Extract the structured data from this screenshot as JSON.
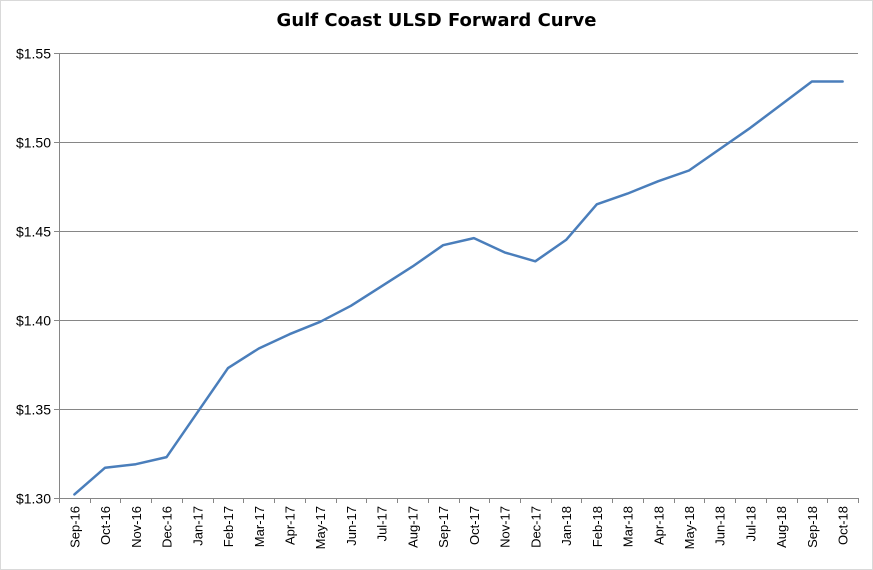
{
  "chart_data": {
    "type": "line",
    "title": "Gulf Coast ULSD Forward Curve",
    "xlabel": "",
    "ylabel": "",
    "ylim": [
      1.3,
      1.55
    ],
    "ytick_values": [
      1.3,
      1.35,
      1.4,
      1.45,
      1.5,
      1.55
    ],
    "ytick_labels": [
      "$1.30",
      "$1.35",
      "$1.40",
      "$1.45",
      "$1.50",
      "$1.55"
    ],
    "grid": true,
    "legend": "none",
    "categories": [
      "Sep-16",
      "Oct-16",
      "Nov-16",
      "Dec-16",
      "Jan-17",
      "Feb-17",
      "Mar-17",
      "Apr-17",
      "May-17",
      "Jun-17",
      "Jul-17",
      "Aug-17",
      "Sep-17",
      "Oct-17",
      "Nov-17",
      "Dec-17",
      "Jan-18",
      "Feb-18",
      "Mar-18",
      "Apr-18",
      "May-18",
      "Jun-18",
      "Jul-18",
      "Aug-18",
      "Sep-18",
      "Oct-18"
    ],
    "series": [
      {
        "name": "Gulf Coast ULSD",
        "color": "#4a7ebb",
        "values": [
          1.302,
          1.317,
          1.319,
          1.323,
          1.348,
          1.373,
          1.384,
          1.392,
          1.399,
          1.408,
          1.419,
          1.43,
          1.442,
          1.446,
          1.438,
          1.433,
          1.445,
          1.465,
          1.471,
          1.478,
          1.484,
          1.496,
          1.508,
          1.521,
          1.534,
          1.534
        ]
      }
    ]
  }
}
